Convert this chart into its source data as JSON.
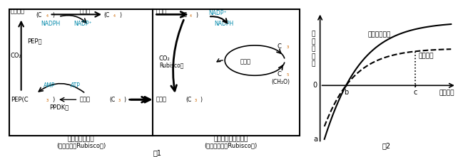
{
  "fig2": {
    "title": "图2",
    "ylabel": "净\n光\n合\n速\n率",
    "xlabel": "光照强度",
    "label_transgenic": "转双基因水稻",
    "label_original": "原种水稻"
  },
  "fig1": {
    "title1": "叶肉细胞叶绿体",
    "subtitle1": "(类囊体，无Rubisco酶)",
    "title2": "维管束鞘细胞叶绿体",
    "subtitle2": "(无类囊体，有Rubisco酶)",
    "caption": "图1",
    "tc": "#0088AA",
    "to": "#CC6600",
    "tk": "#000000"
  }
}
